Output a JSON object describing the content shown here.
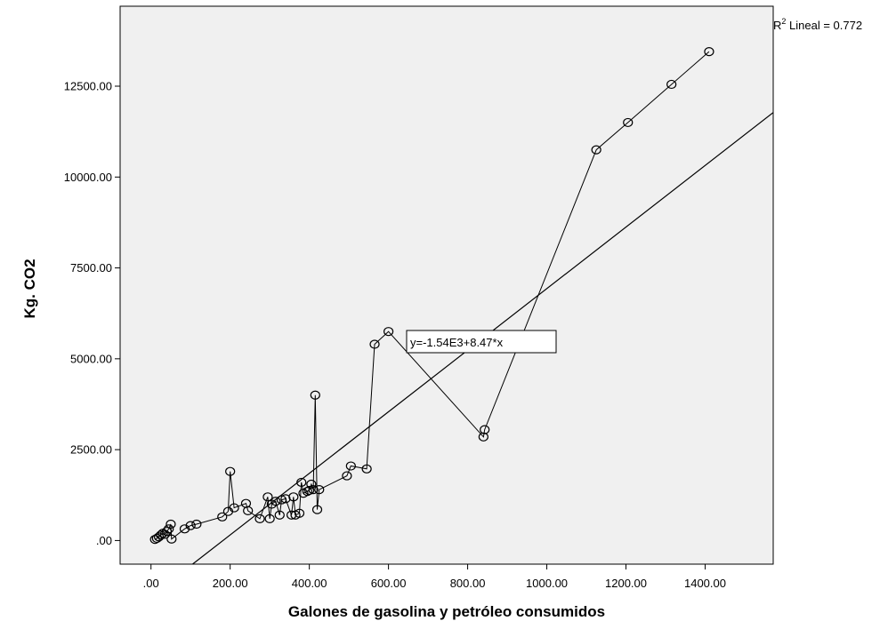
{
  "chart_data": {
    "type": "scatter",
    "xlabel": "Galones de gasolina y petróleo consumidos",
    "ylabel": "Kg. CO2",
    "xlim": [
      -78,
      1572
    ],
    "ylim": [
      -650,
      14700
    ],
    "x_ticks": [
      0,
      200,
      400,
      600,
      800,
      1000,
      1200,
      1400
    ],
    "x_tick_labels": [
      ".00",
      "200.00",
      "400.00",
      "600.00",
      "800.00",
      "1000.00",
      "1200.00",
      "1400.00"
    ],
    "y_ticks": [
      0,
      2500,
      5000,
      7500,
      10000,
      12500
    ],
    "y_tick_labels": [
      ".00",
      "2500.00",
      "5000.00",
      "7500.00",
      "10000.00",
      "12500.00"
    ],
    "grid": false,
    "background_color": "#f0f0f0",
    "marker": "open-circle",
    "points_connected": true,
    "points": [
      [
        10,
        30
      ],
      [
        15,
        60
      ],
      [
        20,
        100
      ],
      [
        25,
        150
      ],
      [
        30,
        200
      ],
      [
        35,
        170
      ],
      [
        40,
        250
      ],
      [
        45,
        320
      ],
      [
        50,
        450
      ],
      [
        52,
        40
      ],
      [
        85,
        320
      ],
      [
        100,
        410
      ],
      [
        115,
        450
      ],
      [
        180,
        650
      ],
      [
        195,
        800
      ],
      [
        200,
        1900
      ],
      [
        210,
        900
      ],
      [
        240,
        1020
      ],
      [
        245,
        820
      ],
      [
        275,
        600
      ],
      [
        295,
        1200
      ],
      [
        300,
        600
      ],
      [
        305,
        1000
      ],
      [
        315,
        1080
      ],
      [
        325,
        700
      ],
      [
        330,
        1120
      ],
      [
        340,
        1150
      ],
      [
        355,
        700
      ],
      [
        360,
        1200
      ],
      [
        365,
        700
      ],
      [
        375,
        750
      ],
      [
        380,
        1600
      ],
      [
        385,
        1300
      ],
      [
        395,
        1350
      ],
      [
        400,
        1380
      ],
      [
        405,
        1550
      ],
      [
        410,
        1400
      ],
      [
        415,
        4000
      ],
      [
        420,
        850
      ],
      [
        425,
        1400
      ],
      [
        495,
        1780
      ],
      [
        505,
        2050
      ],
      [
        545,
        1970
      ],
      [
        565,
        5400
      ],
      [
        600,
        5750
      ],
      [
        840,
        2850
      ],
      [
        843,
        3050
      ],
      [
        1125,
        10750
      ],
      [
        1205,
        11500
      ],
      [
        1315,
        12550
      ],
      [
        1410,
        13450
      ]
    ],
    "fit_line": {
      "intercept": -1540,
      "slope": 8.47,
      "equation_label": "y=-1.54E3+8.47*x",
      "r2_label_prefix": "R",
      "r2_label_superscript": "2",
      "r2_label_suffix": " Lineal = 0.772"
    },
    "colors": {
      "line": "#000000",
      "marker": "#000000",
      "plot_background": "#f0f0f0"
    }
  }
}
